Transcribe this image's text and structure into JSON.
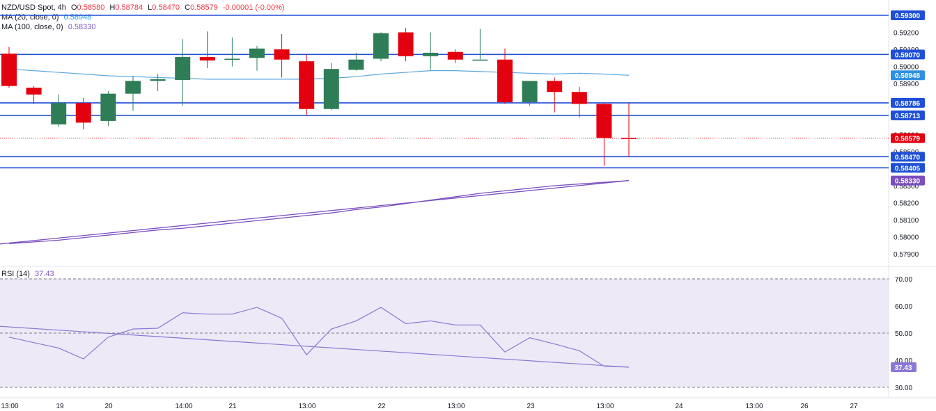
{
  "legend": {
    "symbol": "NZD/USD Spot, 4h",
    "open_label": "O",
    "open": "0.58580",
    "high_label": "H",
    "high": "0.58784",
    "low_label": "L",
    "low": "0.58470",
    "close_label": "C",
    "close": "0.58579",
    "change": "-0.00001 (-0.00%)",
    "ma20_label": "MA (20, close, 0)",
    "ma20_value": "0.58948",
    "ma100_label": "MA (100, close, 0)",
    "ma100_value": "0.58330",
    "rsi_label": "RSI (14)",
    "rsi_value": "37.43"
  },
  "colors": {
    "up": "#2e7d57",
    "down": "#e3000f",
    "hline": "#1f4fd6",
    "ma20": "#5aa7e0",
    "ma100": "#7b4fc0",
    "rsi": "#8c78d4",
    "rsi_band": "#ede9f7",
    "last_price": "#e3000f"
  },
  "chart_data": [
    {
      "type": "candlestick",
      "title": "NZD/USD Spot, 4h",
      "x_tick_labels": [
        "13:00",
        "19",
        "20",
        "14:00",
        "21",
        "13:00",
        "22",
        "13:00",
        "23",
        "13:00",
        "24",
        "13:00",
        "26",
        "27"
      ],
      "y_tick_labels": [
        "0.59300",
        "0.59200",
        "0.59100",
        "0.59000",
        "0.58900",
        "0.58800",
        "0.58700",
        "0.58600",
        "0.58500",
        "0.58400",
        "0.58300",
        "0.58200",
        "0.58100",
        "0.58000",
        "0.57900"
      ],
      "ylim": [
        0.5788,
        0.5935
      ],
      "candles": [
        {
          "o": 0.59075,
          "h": 0.59115,
          "l": 0.58875,
          "c": 0.58885
        },
        {
          "o": 0.58875,
          "h": 0.58885,
          "l": 0.5878,
          "c": 0.58835
        },
        {
          "o": 0.5866,
          "h": 0.58835,
          "l": 0.58645,
          "c": 0.58785
        },
        {
          "o": 0.58785,
          "h": 0.58815,
          "l": 0.5863,
          "c": 0.5867
        },
        {
          "o": 0.5868,
          "h": 0.58855,
          "l": 0.5865,
          "c": 0.5884
        },
        {
          "o": 0.5884,
          "h": 0.58945,
          "l": 0.5874,
          "c": 0.58915
        },
        {
          "o": 0.58915,
          "h": 0.58955,
          "l": 0.58855,
          "c": 0.58925
        },
        {
          "o": 0.5892,
          "h": 0.5916,
          "l": 0.5877,
          "c": 0.59055
        },
        {
          "o": 0.59055,
          "h": 0.59205,
          "l": 0.5899,
          "c": 0.59035
        },
        {
          "o": 0.59045,
          "h": 0.5917,
          "l": 0.59,
          "c": 0.59045
        },
        {
          "o": 0.5905,
          "h": 0.5912,
          "l": 0.58975,
          "c": 0.59105
        },
        {
          "o": 0.591,
          "h": 0.5919,
          "l": 0.58935,
          "c": 0.5904
        },
        {
          "o": 0.5903,
          "h": 0.5907,
          "l": 0.5871,
          "c": 0.5875
        },
        {
          "o": 0.5875,
          "h": 0.5902,
          "l": 0.58745,
          "c": 0.58985
        },
        {
          "o": 0.5898,
          "h": 0.5908,
          "l": 0.58975,
          "c": 0.5904
        },
        {
          "o": 0.59045,
          "h": 0.592,
          "l": 0.5903,
          "c": 0.59195
        },
        {
          "o": 0.592,
          "h": 0.59225,
          "l": 0.5903,
          "c": 0.5906
        },
        {
          "o": 0.5906,
          "h": 0.592,
          "l": 0.5898,
          "c": 0.5908
        },
        {
          "o": 0.59085,
          "h": 0.591,
          "l": 0.5902,
          "c": 0.5904
        },
        {
          "o": 0.5904,
          "h": 0.5922,
          "l": 0.5904,
          "c": 0.5904
        },
        {
          "o": 0.5904,
          "h": 0.59105,
          "l": 0.5878,
          "c": 0.5879
        },
        {
          "o": 0.5879,
          "h": 0.58915,
          "l": 0.5877,
          "c": 0.58915
        },
        {
          "o": 0.58915,
          "h": 0.58935,
          "l": 0.5873,
          "c": 0.5885
        },
        {
          "o": 0.5885,
          "h": 0.5888,
          "l": 0.587,
          "c": 0.5878
        },
        {
          "o": 0.5878,
          "h": 0.58785,
          "l": 0.58415,
          "c": 0.5858
        },
        {
          "o": 0.5858,
          "h": 0.58784,
          "l": 0.5847,
          "c": 0.58579
        }
      ],
      "ma20": [
        0.58985,
        0.58975,
        0.58965,
        0.58955,
        0.58945,
        0.5894,
        0.58935,
        0.5893,
        0.58925,
        0.58925,
        0.58925,
        0.58925,
        0.58925,
        0.5893,
        0.5894,
        0.58955,
        0.58965,
        0.58975,
        0.58975,
        0.5897,
        0.58965,
        0.5896,
        0.58955,
        0.5896,
        0.58955,
        0.58948
      ],
      "ma100": [
        0.5796,
        0.5797,
        0.5798,
        0.57995,
        0.5801,
        0.58025,
        0.5804,
        0.5805,
        0.58065,
        0.5808,
        0.58095,
        0.5811,
        0.58125,
        0.5814,
        0.5816,
        0.58175,
        0.58195,
        0.58215,
        0.58235,
        0.58255,
        0.5827,
        0.58285,
        0.583,
        0.5831,
        0.5832,
        0.5833
      ],
      "horizontal_levels": [
        {
          "label": "0.59300",
          "value": 0.593
        },
        {
          "label": "0.59070",
          "value": 0.5907
        },
        {
          "label": "0.58786",
          "value": 0.58786
        },
        {
          "label": "0.58713",
          "value": 0.58713
        },
        {
          "label": "0.58470",
          "value": 0.5847
        },
        {
          "label": "0.58405",
          "value": 0.58405
        }
      ],
      "last_price": {
        "label": "0.58579",
        "value": 0.58579
      },
      "ma20_tag": {
        "label": "0.58948",
        "value": 0.58948
      },
      "ma100_tag": {
        "label": "0.58330",
        "value": 0.5833
      }
    },
    {
      "type": "line",
      "title": "RSI (14)",
      "y_tick_labels": [
        "70.00",
        "60.00",
        "50.00",
        "40.00",
        "30.00"
      ],
      "ylim": [
        28,
        72
      ],
      "levels": [
        70,
        50,
        30
      ],
      "series": [
        {
          "name": "RSI (14)",
          "values": [
            48.5,
            46.5,
            44.5,
            40.5,
            48.5,
            51.5,
            51.8,
            57.5,
            57.0,
            57.0,
            59.5,
            55.5,
            42.0,
            51.5,
            54.5,
            59.5,
            53.5,
            54.5,
            53.0,
            53.0,
            43.0,
            48.3,
            46.0,
            43.5,
            37.8,
            37.43
          ]
        }
      ],
      "current_tag": {
        "label": "37.43",
        "value": 37.43
      }
    }
  ]
}
